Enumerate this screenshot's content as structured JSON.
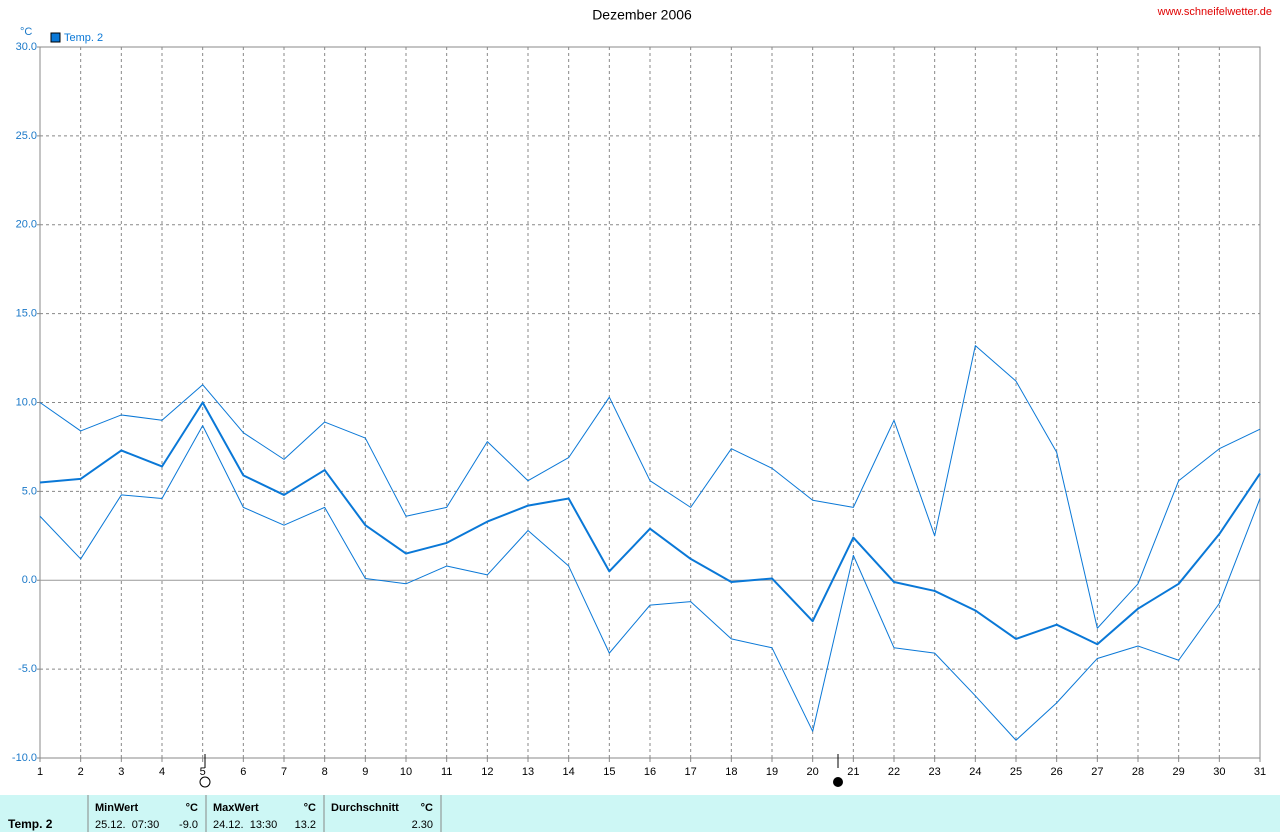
{
  "chart_data": {
    "type": "line",
    "title": "Dezember 2006",
    "source": "www.schneifelwetter.de",
    "y_unit": "°C",
    "x": [
      1,
      2,
      3,
      4,
      5,
      6,
      7,
      8,
      9,
      10,
      11,
      12,
      13,
      14,
      15,
      16,
      17,
      18,
      19,
      20,
      21,
      22,
      23,
      24,
      25,
      26,
      27,
      28,
      29,
      30,
      31
    ],
    "xlim": [
      1,
      31
    ],
    "xticks": [
      1,
      2,
      3,
      4,
      5,
      6,
      7,
      8,
      9,
      10,
      11,
      12,
      13,
      14,
      15,
      16,
      17,
      18,
      19,
      20,
      21,
      22,
      23,
      24,
      25,
      26,
      27,
      28,
      29,
      30,
      31
    ],
    "ylim": [
      -10,
      30
    ],
    "yticks": [
      {
        "value": -10,
        "label": "-10.0"
      },
      {
        "value": -5,
        "label": "-5.0"
      },
      {
        "value": 0,
        "label": "0.0"
      },
      {
        "value": 5,
        "label": "5.0"
      },
      {
        "value": 10,
        "label": "10.0"
      },
      {
        "value": 15,
        "label": "15.0"
      },
      {
        "value": 20,
        "label": "20.0"
      },
      {
        "value": 25,
        "label": "25.0"
      },
      {
        "value": 30,
        "label": "30.0"
      }
    ],
    "grid": true,
    "legend": "top-left",
    "series": [
      {
        "name": "Temp. 2",
        "color": "#0a78d7",
        "values": [
          5.5,
          5.7,
          7.3,
          6.4,
          10.0,
          5.9,
          4.8,
          6.2,
          3.1,
          1.5,
          2.1,
          3.3,
          4.2,
          4.6,
          0.5,
          2.9,
          1.2,
          -0.1,
          0.1,
          -2.3,
          2.4,
          -0.1,
          -0.6,
          -1.7,
          -3.3,
          -2.5,
          -3.6,
          -1.6,
          -0.2,
          2.6,
          6.0
        ]
      },
      {
        "color": "#0a78d7",
        "values": [
          10.0,
          8.4,
          9.3,
          9.0,
          11.0,
          8.3,
          6.8,
          8.9,
          8.0,
          3.6,
          4.1,
          7.8,
          5.6,
          6.9,
          10.3,
          5.6,
          4.1,
          7.4,
          6.3,
          4.5,
          4.1,
          9.0,
          2.5,
          13.2,
          11.2,
          7.2,
          -2.7,
          -0.2,
          5.6,
          7.4,
          8.5
        ]
      },
      {
        "color": "#0a78d7",
        "values": [
          3.6,
          1.2,
          4.8,
          4.6,
          8.7,
          4.1,
          3.1,
          4.1,
          0.1,
          -0.2,
          0.8,
          0.3,
          2.8,
          0.8,
          -4.1,
          -1.4,
          -1.2,
          -3.3,
          -3.8,
          -8.5,
          1.4,
          -3.8,
          -4.1,
          -6.5,
          -9.0,
          -6.9,
          -4.4,
          -3.7,
          -4.5,
          -1.3,
          4.6
        ]
      }
    ],
    "stats": {
      "row_label": "Temp. 2",
      "columns": [
        {
          "header": "MinWert",
          "unit": "°C",
          "time": "25.12.  07:30",
          "value": "-9.0"
        },
        {
          "header": "MaxWert",
          "unit": "°C",
          "time": "24.12.  13:30",
          "value": "13.2"
        },
        {
          "header": "Durchschnitt",
          "unit": "°C",
          "value": "2.30"
        }
      ]
    }
  }
}
